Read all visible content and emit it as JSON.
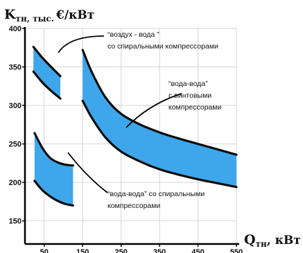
{
  "chart_data": {
    "type": "area",
    "ylabel": {
      "main": "K",
      "sub": "тн, тыс.",
      "unit": "€/кВт"
    },
    "xlabel": {
      "main": "Q",
      "sub": "тн",
      "unit": ", кВт"
    },
    "xlim": [
      0,
      550
    ],
    "ylim": [
      120,
      400
    ],
    "x_ticks": [
      50,
      150,
      250,
      350,
      450,
      550
    ],
    "y_ticks": [
      150,
      200,
      250,
      300,
      350,
      400
    ],
    "grid": true,
    "fill_color": "#3ea6ea",
    "border_color": "#0a0a0a",
    "bands": [
      {
        "name": "воздух - вода со спиральными компрессорами",
        "upper": [
          [
            22,
            376
          ],
          [
            45,
            362
          ],
          [
            70,
            349
          ],
          [
            92,
            338
          ]
        ],
        "lower": [
          [
            22,
            344
          ],
          [
            45,
            330
          ],
          [
            70,
            318
          ],
          [
            92,
            309
          ]
        ]
      },
      {
        "name": "вода-вода с винтовыми компрессорами",
        "upper": [
          [
            150,
            372
          ],
          [
            175,
            342
          ],
          [
            210,
            310
          ],
          [
            250,
            289
          ],
          [
            300,
            275
          ],
          [
            350,
            265
          ],
          [
            400,
            257
          ],
          [
            450,
            250
          ],
          [
            500,
            243
          ],
          [
            550,
            236
          ]
        ],
        "lower": [
          [
            150,
            306
          ],
          [
            175,
            283
          ],
          [
            210,
            258
          ],
          [
            250,
            240
          ],
          [
            300,
            227
          ],
          [
            350,
            217
          ],
          [
            400,
            210
          ],
          [
            450,
            204
          ],
          [
            500,
            199
          ],
          [
            550,
            194
          ]
        ]
      },
      {
        "name": "вода-вода со спиральными компрессорами",
        "upper": [
          [
            25,
            264
          ],
          [
            45,
            245
          ],
          [
            65,
            232
          ],
          [
            85,
            226
          ],
          [
            105,
            223
          ],
          [
            125,
            222
          ]
        ],
        "lower": [
          [
            25,
            202
          ],
          [
            45,
            190
          ],
          [
            65,
            182
          ],
          [
            85,
            176
          ],
          [
            105,
            172
          ],
          [
            125,
            170
          ]
        ]
      }
    ],
    "annotations": [
      {
        "line1": "“воздух - вода ”",
        "line2": "со спиральными компрессорами"
      },
      {
        "line1": "“вода-вода”",
        "line2": "с винтовыми",
        "line3": "компрессорами"
      },
      {
        "line1": "“вода-вода” со спиральными",
        "line2": "компрессорами"
      }
    ]
  }
}
